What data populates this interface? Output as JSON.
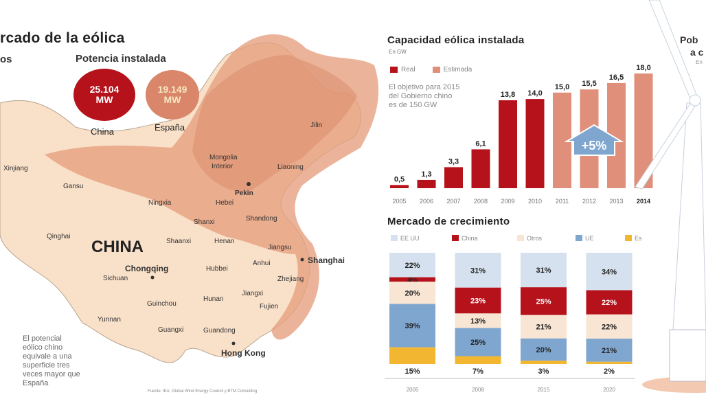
{
  "header": {
    "title": "rcado de la eólica",
    "left_sub": "os",
    "potencia_title": "Potencia instalada"
  },
  "potencia": [
    {
      "value": "25.104",
      "unit": "MW",
      "country": "China",
      "color": "#b5121b"
    },
    {
      "value": "19.149",
      "unit": "MW",
      "country": "España",
      "color": "#d9866a"
    }
  ],
  "map": {
    "country_label": "CHINA",
    "labels": [
      "Xinjiang",
      "Gansu",
      "Ningxia",
      "Mongolia",
      "Interior",
      "Jilin",
      "Liaoning",
      "Pekin",
      "Hebei",
      "Shanxi",
      "Shandong",
      "Qinghai",
      "Shaanxi",
      "Henan",
      "Jiangsu",
      "Shanghai",
      "Chongqing",
      "Hubbei",
      "Anhui",
      "Sichuan",
      "Zhejiang",
      "Jiangxi",
      "Guinchou",
      "Hunan",
      "Fujien",
      "Yunnan",
      "Guangxi",
      "Guandong",
      "Hong Kong"
    ],
    "note": [
      "El potencial",
      "eólico chino",
      "equivale a una",
      "superficie tres",
      "veces mayor que",
      "España"
    ],
    "source": "Fuente: IEA, Global Wind Energy Council y BTM Consulting"
  },
  "colors": {
    "real": "#b5121b",
    "estimada": "#e0907a",
    "usa": "#d5e1ee",
    "china": "#b5121b",
    "otros": "#f8e5d3",
    "ue": "#7fa6cf",
    "espana": "#f2b630",
    "arrow": "#7fa6cf"
  },
  "chart_data": [
    {
      "type": "bar",
      "title": "Capacidad eólica instalada",
      "unit": "En GW",
      "legend": [
        "Real",
        "Estimada"
      ],
      "note": [
        "El objetivo para 2015",
        "del Gobierno chino",
        "es de 150 GW"
      ],
      "annotation": "+5%",
      "categories": [
        "2005",
        "2006",
        "2007",
        "2008",
        "2009",
        "2010",
        "2011",
        "2012",
        "2013",
        "2014"
      ],
      "values": [
        0.5,
        1.3,
        3.3,
        6.1,
        13.8,
        14.0,
        15.0,
        15.5,
        16.5,
        18.0
      ],
      "value_labels": [
        "0,5",
        "1,3",
        "3,3",
        "6,1",
        "13,8",
        "14,0",
        "15,0",
        "15,5",
        "16,5",
        "18,0"
      ],
      "series_type": [
        "Real",
        "Real",
        "Real",
        "Real",
        "Real",
        "Real",
        "Estimada",
        "Estimada",
        "Estimada",
        "Estimada"
      ],
      "ylim": [
        0,
        18
      ]
    },
    {
      "type": "bar",
      "stacked": true,
      "title": "Mercado de crecimiento",
      "categories": [
        "2005",
        "2008",
        "2015",
        "2020"
      ],
      "series": [
        {
          "name": "EE UU",
          "values": [
            22,
            31,
            31,
            34
          ]
        },
        {
          "name": "China",
          "values": [
            4,
            23,
            25,
            22
          ]
        },
        {
          "name": "Otros",
          "values": [
            20,
            13,
            21,
            22
          ]
        },
        {
          "name": "UE",
          "values": [
            39,
            25,
            20,
            21
          ]
        },
        {
          "name": "España",
          "values": [
            15,
            7,
            3,
            2
          ]
        }
      ],
      "ylim": [
        0,
        100
      ]
    }
  ],
  "right": {
    "line1": "Pob",
    "line2": "a c",
    "line3": "En"
  }
}
